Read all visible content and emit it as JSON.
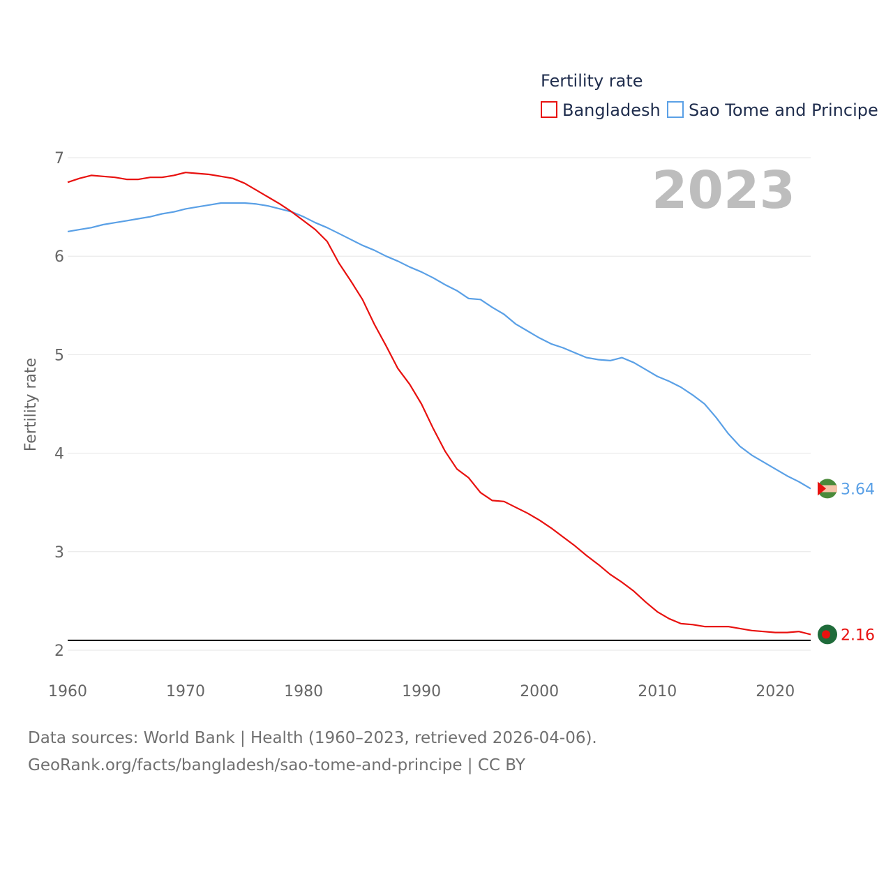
{
  "chart_data": {
    "type": "line",
    "title": "Fertility rate",
    "ylabel": "Fertility rate",
    "xlabel": "",
    "year_watermark": "2023",
    "xlim": [
      1960,
      2023
    ],
    "ylim": [
      2,
      7
    ],
    "x_ticks": [
      "1960",
      "1970",
      "1980",
      "1990",
      "2000",
      "2010",
      "2020"
    ],
    "y_ticks": [
      "2",
      "3",
      "4",
      "5",
      "6",
      "7"
    ],
    "reference_line": 2.1,
    "x": [
      1960,
      1961,
      1962,
      1963,
      1964,
      1965,
      1966,
      1967,
      1968,
      1969,
      1970,
      1971,
      1972,
      1973,
      1974,
      1975,
      1976,
      1977,
      1978,
      1979,
      1980,
      1981,
      1982,
      1983,
      1984,
      1985,
      1986,
      1987,
      1988,
      1989,
      1990,
      1991,
      1992,
      1993,
      1994,
      1995,
      1996,
      1997,
      1998,
      1999,
      2000,
      2001,
      2002,
      2003,
      2004,
      2005,
      2006,
      2007,
      2008,
      2009,
      2010,
      2011,
      2012,
      2013,
      2014,
      2015,
      2016,
      2017,
      2018,
      2019,
      2020,
      2021,
      2022,
      2023
    ],
    "series": [
      {
        "name": "Bangladesh",
        "color": "#e8110f",
        "end_label": "2.16",
        "values": [
          6.75,
          6.79,
          6.82,
          6.81,
          6.8,
          6.78,
          6.78,
          6.8,
          6.8,
          6.82,
          6.85,
          6.84,
          6.83,
          6.81,
          6.79,
          6.74,
          6.67,
          6.6,
          6.53,
          6.45,
          6.36,
          6.27,
          6.15,
          5.93,
          5.75,
          5.56,
          5.31,
          5.09,
          4.86,
          4.7,
          4.5,
          4.25,
          4.02,
          3.84,
          3.75,
          3.6,
          3.52,
          3.51,
          3.45,
          3.39,
          3.32,
          3.24,
          3.15,
          3.06,
          2.96,
          2.87,
          2.77,
          2.69,
          2.6,
          2.49,
          2.39,
          2.32,
          2.27,
          2.26,
          2.24,
          2.24,
          2.24,
          2.22,
          2.2,
          2.19,
          2.18,
          2.18,
          2.19,
          2.16
        ]
      },
      {
        "name": "Sao Tome and Principe",
        "color": "#5aa0e6",
        "end_label": "3.64",
        "values": [
          6.25,
          6.27,
          6.29,
          6.32,
          6.34,
          6.36,
          6.38,
          6.4,
          6.43,
          6.45,
          6.48,
          6.5,
          6.52,
          6.54,
          6.54,
          6.54,
          6.53,
          6.51,
          6.48,
          6.45,
          6.4,
          6.34,
          6.29,
          6.23,
          6.17,
          6.11,
          6.06,
          6.0,
          5.95,
          5.89,
          5.84,
          5.78,
          5.71,
          5.65,
          5.57,
          5.56,
          5.48,
          5.41,
          5.31,
          5.24,
          5.17,
          5.11,
          5.07,
          5.02,
          4.97,
          4.95,
          4.94,
          4.97,
          4.92,
          4.85,
          4.78,
          4.73,
          4.67,
          4.59,
          4.5,
          4.36,
          4.2,
          4.07,
          3.98,
          3.91,
          3.84,
          3.77,
          3.71,
          3.64
        ]
      }
    ]
  },
  "legend": {
    "title": "Fertility rate"
  },
  "footer": {
    "line1": "Data sources: World Bank | Health (1960–2023, retrieved 2026-04-06).",
    "line2": "GeoRank.org/facts/bangladesh/sao-tome-and-principe | CC BY"
  }
}
